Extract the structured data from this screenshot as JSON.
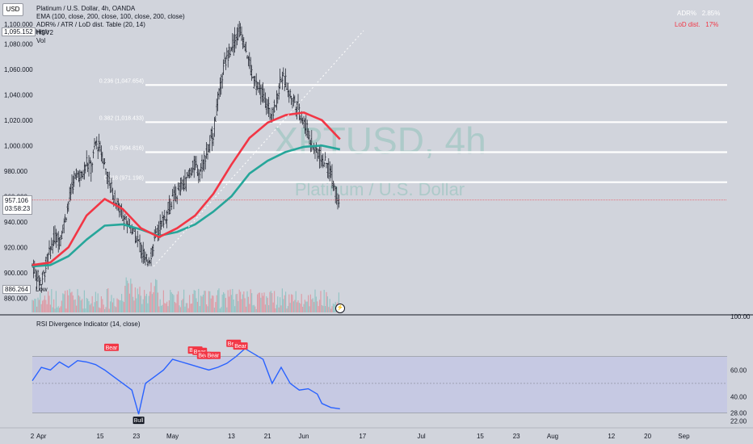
{
  "header": {
    "currency_button": "USD",
    "symbol_line": "Platinum / U.S. Dollar, 4h, OANDA",
    "indicator_ema": "EMA (100, close, 200, close, 100, close, 200, close)",
    "indicator_adr": "ADR% / ATR / LoD dist. Table (20, 14)",
    "indicator_hsv2": "HSV2",
    "indicator_vol": "Vol",
    "high_price": "1,095.152",
    "high_label": "High",
    "low_price": "886.264",
    "low_label": "Low",
    "current_price": "957.106",
    "countdown": "03:58:23",
    "top_price": "1,100.000"
  },
  "adr_table": {
    "adr_label": "ADR%",
    "adr_value": "2.85%",
    "lod_label": "LoD dist.",
    "lod_value": "17%"
  },
  "watermark": {
    "symbol": "XPTUSD, 4h",
    "name": "Platinum / U.S. Dollar"
  },
  "fib_levels": [
    {
      "label": "0.236 (1,047.654)",
      "value": 1047.654
    },
    {
      "label": "0.382 (1,018.433)",
      "value": 1018.433
    },
    {
      "label": "0.5 (994.816)",
      "value": 994.816
    },
    {
      "label": "0.618 (971.198)",
      "value": 971.198
    }
  ],
  "rsi_panel": {
    "title": "RSI Divergence Indicator (14, close)",
    "levels": [
      {
        "v": 100,
        "label": "100.00"
      },
      {
        "v": 60,
        "label": "60.00"
      },
      {
        "v": 40,
        "label": "40.00"
      },
      {
        "v": 28,
        "label": "28.00"
      },
      {
        "v": 22,
        "label": "22.00"
      }
    ],
    "bear_label": "Bear",
    "bull_label": "Bull",
    "bear_marks": [
      {
        "x": 17.5,
        "rsi": 73
      },
      {
        "x": 36,
        "rsi": 71
      },
      {
        "x": 37,
        "rsi": 70
      },
      {
        "x": 38,
        "rsi": 67
      },
      {
        "x": 40,
        "rsi": 67
      },
      {
        "x": 44.5,
        "rsi": 76
      },
      {
        "x": 46,
        "rsi": 74
      }
    ],
    "bull_marks": [
      {
        "x": 23.5,
        "rsi": 27
      }
    ],
    "color_line": "#2962ff",
    "color_bear": "#f23645"
  },
  "colors": {
    "ema_red": "#f23645",
    "ema_teal": "#26a69a",
    "candle": "#131722",
    "fib": "#ffffff"
  },
  "time_axis": [
    {
      "x": 0,
      "label": "2"
    },
    {
      "x": 2,
      "label": "Apr"
    },
    {
      "x": 15,
      "label": "15"
    },
    {
      "x": 23,
      "label": "23"
    },
    {
      "x": 31,
      "label": "May"
    },
    {
      "x": 44,
      "label": "13"
    },
    {
      "x": 52,
      "label": "21"
    },
    {
      "x": 60,
      "label": "Jun"
    },
    {
      "x": 73,
      "label": "17"
    },
    {
      "x": 86,
      "label": "Jul"
    },
    {
      "x": 99,
      "label": "15"
    },
    {
      "x": 107,
      "label": "23"
    },
    {
      "x": 115,
      "label": "Aug"
    },
    {
      "x": 128,
      "label": "12"
    },
    {
      "x": 136,
      "label": "20"
    },
    {
      "x": 144,
      "label": "Sep"
    }
  ],
  "chart_data": {
    "type": "line",
    "title": "Platinum / U.S. Dollar, 4h, OANDA",
    "xlabel": "",
    "ylabel": "",
    "ylim": [
      870,
      1105
    ],
    "price_ticks": [
      880,
      900,
      920,
      940,
      960,
      980,
      1000,
      1020,
      1040,
      1060,
      1080
    ],
    "series": [
      {
        "name": "Close",
        "x": [
          0,
          1,
          2,
          3,
          4,
          5,
          6,
          7,
          8,
          9,
          10,
          11,
          12,
          13,
          14,
          15,
          16,
          17,
          18,
          19,
          20,
          21,
          22,
          23,
          24,
          25,
          26,
          27,
          28,
          29,
          30,
          31,
          32,
          33,
          34,
          35,
          36,
          37,
          38,
          39,
          40,
          41,
          42,
          43,
          44,
          45,
          46,
          47,
          48,
          49,
          50,
          51,
          52,
          53,
          54,
          55,
          56,
          57,
          58,
          59,
          60,
          61,
          62,
          63,
          64,
          65,
          66,
          67,
          68
        ],
        "values": [
          906,
          898,
          892,
          905,
          918,
          928,
          926,
          938,
          955,
          970,
          978,
          975,
          988,
          982,
          1002,
          998,
          985,
          972,
          960,
          952,
          945,
          940,
          934,
          928,
          920,
          908,
          912,
          925,
          935,
          942,
          948,
          958,
          962,
          968,
          972,
          980,
          985,
          978,
          990,
          998,
          1010,
          1035,
          1055,
          1070,
          1078,
          1085,
          1090,
          1080,
          1065,
          1050,
          1045,
          1040,
          1030,
          1025,
          1035,
          1055,
          1050,
          1040,
          1035,
          1028,
          1018,
          1010,
          1000,
          995,
          990,
          985,
          978,
          965,
          957
        ]
      },
      {
        "name": "EMA 100",
        "x": [
          0,
          4,
          8,
          12,
          16,
          20,
          24,
          28,
          32,
          36,
          40,
          44,
          48,
          52,
          56,
          60,
          64,
          68
        ],
        "values": [
          905,
          906,
          913,
          926,
          937,
          938,
          934,
          929,
          932,
          938,
          948,
          960,
          978,
          988,
          995,
          999,
          1000,
          997
        ]
      },
      {
        "name": "EMA 200",
        "x": [
          0,
          4,
          8,
          12,
          16,
          20,
          24,
          28,
          32,
          36,
          40,
          44,
          48,
          52,
          56,
          60,
          64,
          68
        ],
        "values": [
          906,
          908,
          920,
          945,
          958,
          950,
          935,
          928,
          935,
          945,
          962,
          985,
          1006,
          1018,
          1024,
          1026,
          1020,
          1005
        ]
      }
    ],
    "high": {
      "x": 46,
      "value": 1095.152
    },
    "low": {
      "x": 1,
      "value": 886.264
    },
    "last": 957.106,
    "rsi": {
      "x": [
        0,
        2,
        4,
        6,
        8,
        10,
        12,
        14,
        16,
        18,
        20,
        22,
        23.5,
        25,
        27,
        29,
        31,
        33,
        35,
        37,
        39,
        41,
        43,
        45,
        47,
        49,
        51,
        53,
        55,
        57,
        59,
        61,
        63,
        64,
        66,
        68
      ],
      "values": [
        52,
        62,
        60,
        66,
        62,
        67,
        66,
        64,
        60,
        55,
        50,
        45,
        27,
        50,
        55,
        60,
        68,
        66,
        64,
        62,
        60,
        62,
        65,
        70,
        76,
        72,
        68,
        50,
        62,
        50,
        45,
        46,
        42,
        35,
        32,
        31
      ]
    }
  }
}
